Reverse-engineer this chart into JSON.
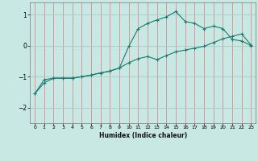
{
  "xlabel": "Humidex (Indice chaleur)",
  "background_color": "#c8e8e4",
  "line_color": "#1a7a6e",
  "grid_color_v": "#e08888",
  "grid_color_h": "#a8c8c4",
  "xlim": [
    -0.5,
    23.5
  ],
  "ylim": [
    -2.5,
    1.4
  ],
  "yticks": [
    -2,
    -1,
    0,
    1
  ],
  "xticks": [
    0,
    1,
    2,
    3,
    4,
    5,
    6,
    7,
    8,
    9,
    10,
    11,
    12,
    13,
    14,
    15,
    16,
    17,
    18,
    19,
    20,
    21,
    22,
    23
  ],
  "line1_x": [
    0,
    1,
    2,
    3,
    4,
    5,
    6,
    7,
    8,
    9,
    10,
    11,
    12,
    13,
    14,
    15,
    16,
    17,
    18,
    19,
    20,
    21,
    22,
    23
  ],
  "line1_y": [
    -1.55,
    -1.1,
    -1.05,
    -1.05,
    -1.05,
    -1.0,
    -0.95,
    -0.88,
    -0.82,
    -0.72,
    -0.02,
    0.55,
    0.72,
    0.83,
    0.93,
    1.1,
    0.78,
    0.72,
    0.55,
    0.63,
    0.55,
    0.2,
    0.15,
    0.0
  ],
  "line2_x": [
    0,
    1,
    2,
    3,
    4,
    5,
    6,
    7,
    8,
    9,
    10,
    11,
    12,
    13,
    14,
    15,
    16,
    17,
    18,
    19,
    20,
    21,
    22,
    23
  ],
  "line2_y": [
    -1.55,
    -1.2,
    -1.05,
    -1.05,
    -1.05,
    -1.0,
    -0.95,
    -0.88,
    -0.82,
    -0.72,
    -0.55,
    -0.42,
    -0.35,
    -0.45,
    -0.32,
    -0.2,
    -0.14,
    -0.08,
    -0.02,
    0.1,
    0.22,
    0.3,
    0.38,
    0.02
  ]
}
